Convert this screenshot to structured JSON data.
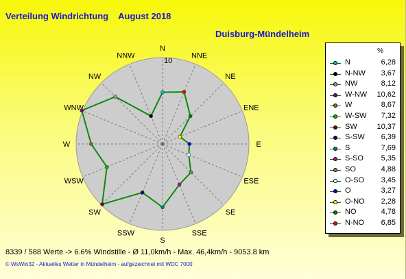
{
  "title": "Verteilung Windrichtung",
  "month": "August 2018",
  "station": "Duisburg-Mündelheim",
  "stats_line": "8339 / 588 Werte  -> 6.6% Windstille   -   Ø 11,0km/h  -  Max. 46,4km/h   -    9053.8 km",
  "footer": "© WsWin32  -  Aktuelles Wetter in Mündelheim  -  aufgezeichnet mit WDC 7000",
  "legend_unit": "%",
  "chart_data": {
    "type": "radar",
    "title": "Verteilung Windrichtung",
    "subtitle": "Duisburg-Mündelheim",
    "r_max": 10,
    "ring_label": "10",
    "directions": [
      "N",
      "NNE",
      "NE",
      "ENE",
      "E",
      "ESE",
      "SE",
      "SSE",
      "S",
      "SSW",
      "SW",
      "WSW",
      "W",
      "WNW",
      "NW",
      "NNW"
    ],
    "values": [
      6.28,
      6.85,
      4.78,
      2.28,
      3.27,
      3.45,
      4.88,
      5.35,
      7.69,
      6.39,
      10.37,
      7.32,
      8.67,
      10.62,
      8.12,
      3.67
    ],
    "line_color": "#0a8a0a",
    "legend": [
      {
        "name": "N",
        "value": "6,28",
        "color": "#00bfbf"
      },
      {
        "name": "N-NW",
        "value": "3,67",
        "color": "#000000"
      },
      {
        "name": "NW",
        "value": "8,12",
        "color": "#9a9a9a"
      },
      {
        "name": "W-NW",
        "value": "10,62",
        "color": "#800080"
      },
      {
        "name": "W",
        "value": "8,67",
        "color": "#808000"
      },
      {
        "name": "W-SW",
        "value": "7,32",
        "color": "#00c000"
      },
      {
        "name": "SW",
        "value": "10,37",
        "color": "#800000"
      },
      {
        "name": "S-SW",
        "value": "6,39",
        "color": "#000080"
      },
      {
        "name": "S",
        "value": "7,69",
        "color": "#008080"
      },
      {
        "name": "S-SO",
        "value": "5,35",
        "color": "#c000c0"
      },
      {
        "name": "SO",
        "value": "4,88",
        "color": "#808080"
      },
      {
        "name": "O-SO",
        "value": "3,45",
        "color": "#ffffff"
      },
      {
        "name": "O",
        "value": "3,27",
        "color": "#0000ff"
      },
      {
        "name": "O-NO",
        "value": "2,28",
        "color": "#ffff00"
      },
      {
        "name": "NO",
        "value": "4,78",
        "color": "#008000"
      },
      {
        "name": "N-NO",
        "value": "6,85",
        "color": "#ff0000"
      }
    ]
  }
}
